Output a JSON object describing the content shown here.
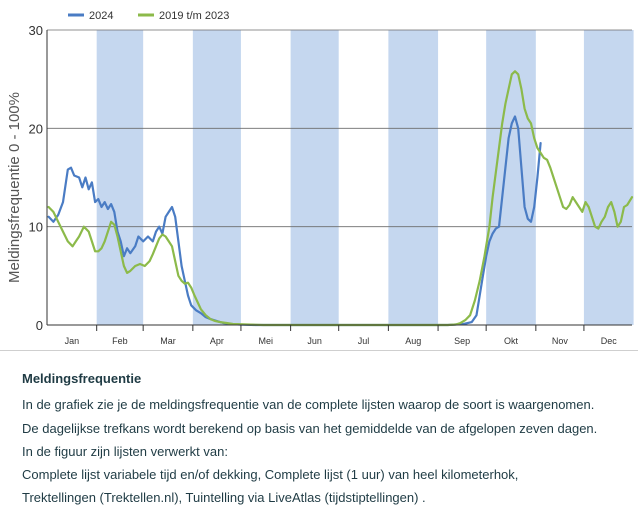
{
  "chart_data": {
    "type": "line",
    "ylabel": "Meldingsfrequentie 0 - 100%",
    "ylim": [
      0,
      30
    ],
    "yticks": [
      0,
      10,
      20,
      30
    ],
    "months": [
      "Jan",
      "Feb",
      "Mar",
      "Apr",
      "Mei",
      "Jun",
      "Jul",
      "Aug",
      "Sep",
      "Okt",
      "Nov",
      "Dec"
    ],
    "shaded_months": [
      "Feb",
      "Apr",
      "Jun",
      "Aug",
      "Okt",
      "Dec"
    ],
    "grid": true,
    "legend_position": "top-left",
    "series": [
      {
        "name": "2024",
        "color": "#4a7cc4",
        "points": [
          [
            1,
            11
          ],
          [
            4,
            10.5
          ],
          [
            7,
            11.2
          ],
          [
            10,
            12.5
          ],
          [
            13,
            15.8
          ],
          [
            15,
            16
          ],
          [
            17,
            15.2
          ],
          [
            20,
            15
          ],
          [
            22,
            14
          ],
          [
            24,
            15
          ],
          [
            26,
            13.8
          ],
          [
            28,
            14.5
          ],
          [
            30,
            12.5
          ],
          [
            32,
            12.8
          ],
          [
            34,
            12
          ],
          [
            36,
            12.5
          ],
          [
            38,
            11.8
          ],
          [
            40,
            12.3
          ],
          [
            42,
            11.5
          ],
          [
            44,
            9.5
          ],
          [
            46,
            8.5
          ],
          [
            48,
            7
          ],
          [
            50,
            7.8
          ],
          [
            52,
            7.3
          ],
          [
            55,
            8
          ],
          [
            57,
            9
          ],
          [
            60,
            8.5
          ],
          [
            63,
            9
          ],
          [
            66,
            8.5
          ],
          [
            68,
            9.5
          ],
          [
            70,
            10
          ],
          [
            72,
            9.3
          ],
          [
            74,
            11
          ],
          [
            76,
            11.5
          ],
          [
            78,
            12
          ],
          [
            80,
            11
          ],
          [
            82,
            8.5
          ],
          [
            84,
            6
          ],
          [
            86,
            4.5
          ],
          [
            88,
            3
          ],
          [
            90,
            2
          ],
          [
            93,
            1.5
          ],
          [
            96,
            1.2
          ],
          [
            99,
            0.8
          ],
          [
            102,
            0.6
          ],
          [
            106,
            0.4
          ],
          [
            110,
            0.2
          ],
          [
            115,
            0.1
          ],
          [
            120,
            0.05
          ],
          [
            130,
            0
          ],
          [
            250,
            0
          ],
          [
            260,
            0.1
          ],
          [
            265,
            0.3
          ],
          [
            268,
            1
          ],
          [
            270,
            3
          ],
          [
            272,
            5
          ],
          [
            274,
            7
          ],
          [
            276,
            8.5
          ],
          [
            278,
            9.3
          ],
          [
            280,
            9.8
          ],
          [
            282,
            10
          ],
          [
            284,
            13
          ],
          [
            286,
            16
          ],
          [
            288,
            19
          ],
          [
            290,
            20.5
          ],
          [
            292,
            21.2
          ],
          [
            294,
            20
          ],
          [
            296,
            16
          ],
          [
            298,
            12
          ],
          [
            300,
            10.8
          ],
          [
            302,
            10.5
          ],
          [
            304,
            12
          ],
          [
            306,
            15
          ],
          [
            308,
            18.5
          ]
        ]
      },
      {
        "name": "2019 t/m 2023",
        "color": "#8cba4a",
        "points": [
          [
            1,
            12
          ],
          [
            4,
            11.5
          ],
          [
            7,
            10.5
          ],
          [
            10,
            9.5
          ],
          [
            13,
            8.5
          ],
          [
            16,
            8
          ],
          [
            18,
            8.5
          ],
          [
            20,
            9
          ],
          [
            23,
            10
          ],
          [
            26,
            9.5
          ],
          [
            28,
            8.5
          ],
          [
            30,
            7.5
          ],
          [
            32,
            7.5
          ],
          [
            34,
            7.8
          ],
          [
            36,
            8.5
          ],
          [
            38,
            9.5
          ],
          [
            40,
            10.5
          ],
          [
            42,
            10.2
          ],
          [
            44,
            9
          ],
          [
            46,
            7.5
          ],
          [
            48,
            6
          ],
          [
            50,
            5.3
          ],
          [
            52,
            5.5
          ],
          [
            55,
            6
          ],
          [
            58,
            6.2
          ],
          [
            61,
            6
          ],
          [
            64,
            6.5
          ],
          [
            66,
            7.2
          ],
          [
            68,
            8
          ],
          [
            70,
            8.8
          ],
          [
            72,
            9.2
          ],
          [
            74,
            9
          ],
          [
            76,
            8.5
          ],
          [
            78,
            8
          ],
          [
            80,
            6.5
          ],
          [
            82,
            5
          ],
          [
            84,
            4.5
          ],
          [
            86,
            4.2
          ],
          [
            88,
            4.3
          ],
          [
            90,
            3.8
          ],
          [
            92,
            3
          ],
          [
            94,
            2.3
          ],
          [
            96,
            1.6
          ],
          [
            99,
            1
          ],
          [
            102,
            0.6
          ],
          [
            105,
            0.4
          ],
          [
            108,
            0.3
          ],
          [
            112,
            0.2
          ],
          [
            116,
            0.1
          ],
          [
            125,
            0.05
          ],
          [
            135,
            0
          ],
          [
            240,
            0
          ],
          [
            250,
            0
          ],
          [
            255,
            0.05
          ],
          [
            258,
            0.2
          ],
          [
            261,
            0.5
          ],
          [
            264,
            1
          ],
          [
            267,
            2.5
          ],
          [
            270,
            4.5
          ],
          [
            273,
            7
          ],
          [
            276,
            10
          ],
          [
            278,
            13
          ],
          [
            280,
            15.5
          ],
          [
            282,
            18
          ],
          [
            284,
            20.5
          ],
          [
            286,
            22.5
          ],
          [
            288,
            24
          ],
          [
            290,
            25.5
          ],
          [
            292,
            25.8
          ],
          [
            294,
            25.5
          ],
          [
            296,
            24
          ],
          [
            298,
            22
          ],
          [
            300,
            21
          ],
          [
            302,
            20.5
          ],
          [
            304,
            19
          ],
          [
            306,
            18
          ],
          [
            308,
            17.5
          ],
          [
            310,
            17
          ],
          [
            312,
            16.8
          ],
          [
            314,
            16
          ],
          [
            316,
            15
          ],
          [
            318,
            14
          ],
          [
            320,
            13
          ],
          [
            322,
            12
          ],
          [
            324,
            11.8
          ],
          [
            326,
            12.2
          ],
          [
            328,
            13
          ],
          [
            330,
            12.5
          ],
          [
            332,
            12
          ],
          [
            334,
            11.5
          ],
          [
            336,
            12.5
          ],
          [
            338,
            12
          ],
          [
            340,
            11
          ],
          [
            342,
            10
          ],
          [
            344,
            9.8
          ],
          [
            346,
            10.5
          ],
          [
            348,
            11
          ],
          [
            350,
            12
          ],
          [
            352,
            12.5
          ],
          [
            354,
            11.5
          ],
          [
            356,
            10
          ],
          [
            358,
            10.5
          ],
          [
            360,
            12
          ],
          [
            362,
            12.2
          ],
          [
            365,
            13
          ]
        ]
      }
    ]
  },
  "info": {
    "title": "Meldingsfrequentie",
    "lines": [
      "In de grafiek zie je de meldingsfrequentie van de complete lijsten waarop de soort is waargenomen.",
      "De dagelijkse trefkans wordt berekend op basis van het gemiddelde van de afgelopen zeven dagen.",
      "In de figuur zijn lijsten verwerkt van:",
      "Complete lijst variabele tijd en/of dekking, Complete lijst (1 uur) van heel kilometerhok,",
      "Trektellingen (Trektellen.nl), Tuintelling via LiveAtlas (tijdstiptellingen) ."
    ]
  }
}
